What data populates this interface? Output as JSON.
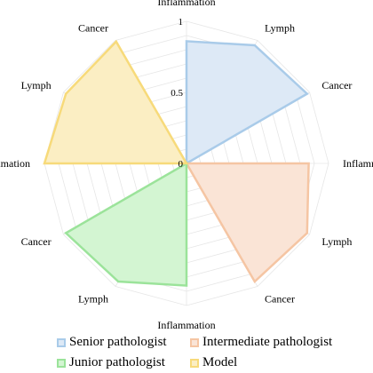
{
  "chart_data": {
    "type": "radar",
    "axes": [
      "Inflammation",
      "Lymph",
      "Cancer",
      "Inflammation",
      "Lymph",
      "Cancer",
      "Inflammation",
      "Lymph",
      "Cancer",
      "Inflammation",
      "Lymph",
      "Cancer"
    ],
    "rlim": [
      0,
      1
    ],
    "radial_ticks": [
      "0",
      "0.5",
      "1"
    ],
    "grid": true,
    "legend_position": "bottom",
    "series": [
      {
        "name": "Senior pathologist",
        "color": "#a9cbe9",
        "fill": "#dde9f6",
        "values": [
          0.86,
          0.96,
          0.98,
          0,
          0,
          0,
          0,
          0,
          0,
          0,
          0,
          0
        ],
        "sector": [
          0,
          3
        ]
      },
      {
        "name": "Intermediate pathologist",
        "color": "#f5c5a3",
        "fill": "#fae4d6",
        "values": [
          0,
          0,
          0,
          0.86,
          0.98,
          0.96,
          0,
          0,
          0,
          0,
          0,
          0
        ],
        "sector": [
          3,
          6
        ]
      },
      {
        "name": "Junior pathologist",
        "color": "#9be39a",
        "fill": "#d3f5d2",
        "values": [
          0,
          0,
          0,
          0,
          0,
          0,
          0.86,
          0.96,
          0.98,
          0,
          0,
          0
        ],
        "sector": [
          6,
          9
        ]
      },
      {
        "name": "Model",
        "color": "#f7da7a",
        "fill": "#fbeec3",
        "values": [
          0,
          0,
          0,
          0,
          0,
          0,
          0,
          0,
          0,
          1.0,
          0.98,
          0.99
        ],
        "sector": [
          9,
          12
        ]
      }
    ]
  }
}
